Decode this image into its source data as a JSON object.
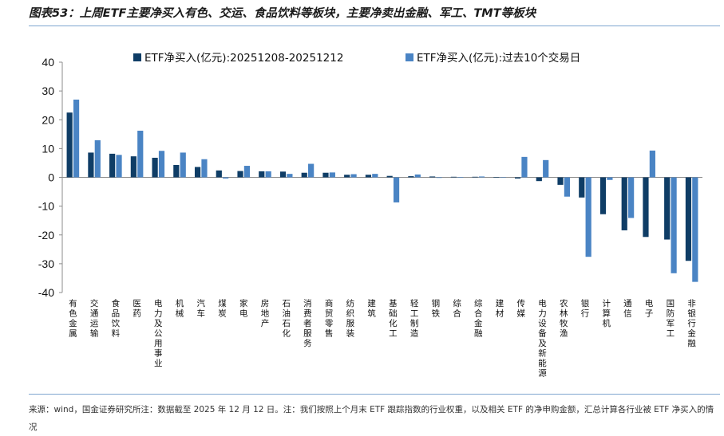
{
  "header": {
    "title": "图表53：上周ETF主要净买入有色、交运、食品饮料等板块，主要净卖出金融、军工、TMT等板块"
  },
  "footer": {
    "source": "来源：wind，国金证券研究所注：数据截至 2025 年 12 月 12 日。注：我们按照上个月末 ETF 跟踪指数的行业权重，以及相关 ETF 的净申购金额，汇总计算各行业被 ETF 净买入的情况"
  },
  "chart_data": {
    "type": "bar",
    "ylim": [
      -40,
      40
    ],
    "yticks": [
      40,
      30,
      20,
      10,
      0,
      -10,
      -20,
      -30,
      -40
    ],
    "legend_position": "top",
    "categories": [
      "有色金属",
      "交通运输",
      "食品饮料",
      "医药",
      "电力及公用事业",
      "机械",
      "汽车",
      "煤炭",
      "家电",
      "房地产",
      "石油石化",
      "消费者服务",
      "商贸零售",
      "纺织服装",
      "建筑",
      "基础化工",
      "轻工制造",
      "钢铁",
      "综合",
      "综合金融",
      "建材",
      "传媒",
      "电力设备及新能源",
      "农林牧渔",
      "银行",
      "计算机",
      "通信",
      "电子",
      "国防军工",
      "非银行金融"
    ],
    "series": [
      {
        "name": "ETF净买入(亿元):20251208-20251212",
        "color": "#0f3d66",
        "values": [
          22.5,
          8.6,
          8.2,
          7.3,
          6.8,
          4.3,
          3.6,
          2.4,
          2.2,
          2.1,
          2.0,
          1.6,
          1.6,
          0.9,
          0.9,
          0.5,
          0.4,
          0.3,
          0.2,
          0.2,
          0.1,
          -0.4,
          -1.3,
          -2.6,
          -7.0,
          -12.8,
          -18.4,
          -20.7,
          -21.6,
          -29.0
        ]
      },
      {
        "name": "ETF净买入(亿元):过去10个交易日",
        "color": "#4a84c4",
        "values": [
          27.0,
          12.9,
          7.8,
          16.2,
          9.2,
          8.6,
          6.3,
          -0.4,
          4.0,
          2.1,
          1.2,
          4.7,
          1.7,
          1.1,
          1.2,
          -8.7,
          1.0,
          -0.2,
          0.1,
          0.3,
          -0.1,
          7.1,
          6.0,
          -6.7,
          -27.6,
          -0.9,
          -14.1,
          9.3,
          -33.3,
          -36.3
        ]
      }
    ]
  }
}
